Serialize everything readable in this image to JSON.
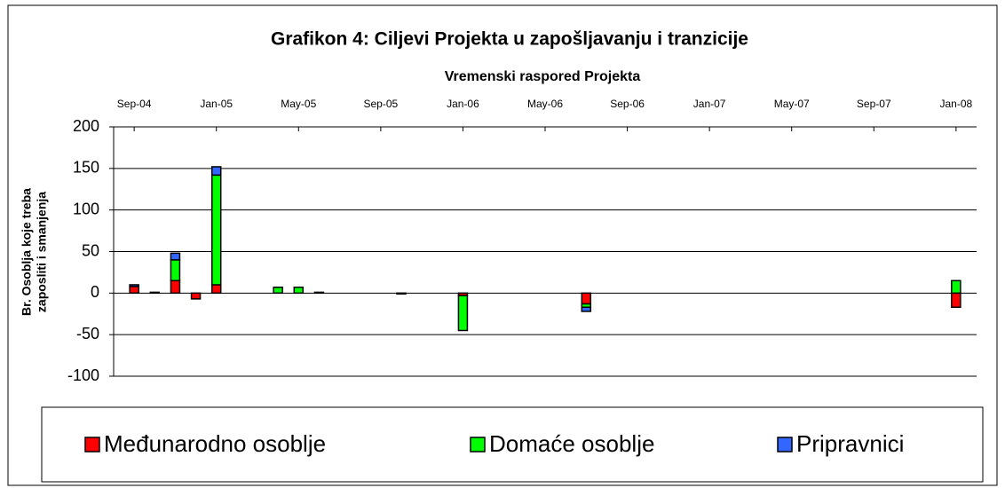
{
  "chart_data": {
    "type": "bar",
    "stacked": true,
    "title": "Grafikon 4: Ciljevi Projekta u zapošljavanju i tranzicije",
    "xlabel": "Vremenski raspored Projekta",
    "ylabel": [
      "Br. Osoblja koje treba",
      "zaposliti i smanjenja"
    ],
    "x": [
      "Sep-04",
      "Oct-04",
      "Nov-04",
      "Dec-04",
      "Jan-05",
      "Apr-05",
      "May-05",
      "Jun-05",
      "Oct-05",
      "Jan-06",
      "Jul-06",
      "Jan-08"
    ],
    "series": [
      {
        "name": "Međunarodno osoblje",
        "color": "#ff0000",
        "values": [
          8,
          0,
          15,
          -7,
          10,
          0,
          0,
          0,
          0,
          -3,
          -13,
          -17
        ]
      },
      {
        "name": "Domaće osoblje",
        "color": "#00ff00",
        "values": [
          0,
          1,
          25,
          0,
          132,
          7,
          7,
          1,
          -1,
          -42,
          -4,
          15
        ]
      },
      {
        "name": "Pripravnici",
        "color": "#3366ff",
        "values": [
          2,
          0,
          8,
          0,
          10,
          0,
          0,
          0,
          0,
          0,
          -5,
          0
        ]
      }
    ],
    "xlim": [
      "Aug-04",
      "Feb-08"
    ],
    "xticks": [
      "Sep-04",
      "Jan-05",
      "May-05",
      "Sep-05",
      "Jan-06",
      "May-06",
      "Sep-06",
      "Jan-07",
      "May-07",
      "Sep-07",
      "Jan-08"
    ],
    "ylim": [
      -100,
      200
    ],
    "yticks": [
      -100,
      -50,
      0,
      50,
      100,
      150,
      200
    ],
    "grid": true
  }
}
